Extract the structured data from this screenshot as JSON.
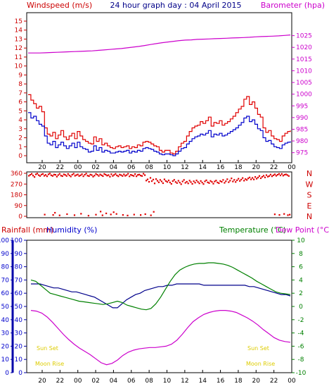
{
  "chart_data": [
    {
      "type": "line",
      "panel": "wind-pressure",
      "title": "24 hour graph day : 04 April 2015",
      "left_axis_label": "Windspeed (m/s)",
      "right_axis_label": "Barometer (hpa)",
      "y_left_ticks": [
        "0",
        "1",
        "2",
        "3",
        "4",
        "5",
        "6",
        "7",
        "8",
        "9",
        "10",
        "11",
        "12",
        "13",
        "14",
        "15"
      ],
      "y_right_ticks": [
        "975",
        "980",
        "985",
        "990",
        "995",
        "1000",
        "1005",
        "1010",
        "1015",
        "1020",
        "1025"
      ],
      "x_ticks": [
        "20",
        "22",
        "00",
        "02",
        "04",
        "06",
        "08",
        "10",
        "12",
        "14",
        "16",
        "18",
        "20",
        "22",
        "00"
      ],
      "ylim_left": [
        0,
        15
      ],
      "ylim_right": [
        972.5,
        1030
      ],
      "grid": false,
      "colors": {
        "gust": "#e00000",
        "average": "#0000cc",
        "barometer": "#cc00cc",
        "axis_left": "#cc0000",
        "axis_right": "#cc00cc"
      },
      "series": [
        {
          "key": "gust",
          "values": [
            6.8,
            6.2,
            5.8,
            5.3,
            5.5,
            4.9,
            3.1,
            2.4,
            2.2,
            2.6,
            1.9,
            2.3,
            2.8,
            2.1,
            1.8,
            2.2,
            2.5,
            1.9,
            2.7,
            2.2,
            1.8,
            1.6,
            1.4,
            1.3,
            2.1,
            1.6,
            1.9,
            1.2,
            1.4,
            1.1,
            0.9,
            0.8,
            1.0,
            1.1,
            0.9,
            1.0,
            1.1,
            0.8,
            1.0,
            0.9,
            1.2,
            1.1,
            1.5,
            1.6,
            1.5,
            1.3,
            1.1,
            1.0,
            0.6,
            0.4,
            0.6,
            0.6,
            0.3,
            0.2,
            0.5,
            1.0,
            1.4,
            1.6,
            2.2,
            2.7,
            3.1,
            3.3,
            3.4,
            3.8,
            3.6,
            3.9,
            4.3,
            3.3,
            3.7,
            3.6,
            3.9,
            3.4,
            3.6,
            3.8,
            4.1,
            4.4,
            4.8,
            5.2,
            5.5,
            6.3,
            6.6,
            5.7,
            6.0,
            5.3,
            4.6,
            4.3,
            3.1,
            2.6,
            2.8,
            2.2,
            1.9,
            1.8,
            1.6,
            2.2,
            2.5,
            2.7,
            2.8
          ]
        },
        {
          "key": "average",
          "values": [
            4.8,
            4.2,
            4.4,
            3.9,
            3.5,
            3.3,
            2.2,
            1.4,
            1.2,
            1.6,
            0.9,
            1.2,
            1.5,
            1.1,
            0.8,
            1.1,
            1.4,
            0.9,
            1.5,
            1.0,
            0.8,
            0.7,
            0.4,
            0.5,
            1.1,
            0.6,
            0.9,
            0.4,
            0.6,
            0.5,
            0.3,
            0.3,
            0.4,
            0.5,
            0.4,
            0.5,
            0.6,
            0.3,
            0.5,
            0.4,
            0.6,
            0.5,
            0.8,
            0.9,
            0.8,
            0.7,
            0.5,
            0.4,
            0.2,
            0.1,
            0.2,
            0.2,
            0.1,
            0.0,
            0.2,
            0.5,
            0.8,
            0.9,
            1.3,
            1.6,
            1.9,
            2.1,
            2.2,
            2.4,
            2.3,
            2.5,
            2.8,
            2.1,
            2.4,
            2.3,
            2.5,
            2.2,
            2.3,
            2.5,
            2.7,
            2.9,
            3.1,
            3.4,
            3.7,
            4.2,
            4.4,
            3.8,
            4.0,
            3.5,
            3.0,
            2.8,
            2.0,
            1.6,
            1.7,
            1.3,
            1.0,
            0.9,
            0.8,
            1.2,
            1.4,
            1.5,
            1.6
          ]
        },
        {
          "key": "barometer",
          "values": [
            1017.6,
            1017.6,
            1017.6,
            1017.7,
            1017.8,
            1017.9,
            1018.0,
            1018.1,
            1018.2,
            1018.3,
            1018.4,
            1018.5,
            1018.7,
            1018.9,
            1019.1,
            1019.3,
            1019.5,
            1019.8,
            1020.1,
            1020.4,
            1020.8,
            1021.2,
            1021.6,
            1022.0,
            1022.3,
            1022.6,
            1022.9,
            1023.1,
            1023.2,
            1023.4,
            1023.5,
            1023.6,
            1023.7,
            1023.8,
            1023.9,
            1024.0,
            1024.1,
            1024.2,
            1024.3,
            1024.5,
            1024.6,
            1024.7,
            1024.8,
            1024.9,
            1025.1,
            1025.3
          ]
        }
      ]
    },
    {
      "type": "scatter",
      "panel": "wind-direction",
      "y_left_ticks": [
        "360",
        "270",
        "180",
        "90",
        "0"
      ],
      "y_right_labels": [
        "N",
        "W",
        "S",
        "E",
        "N"
      ],
      "ylim": [
        0,
        360
      ],
      "colors": {
        "points": "#e00000"
      },
      "series": [
        {
          "key": "direction",
          "x": [
            0.0,
            0.15,
            0.3,
            0.45,
            0.6,
            0.75,
            0.9,
            1.05,
            1.2,
            1.35,
            1.5,
            1.65,
            1.8,
            1.95,
            2.1,
            2.25,
            2.4,
            2.55,
            2.7,
            2.85,
            3.0,
            3.15,
            3.3,
            3.45,
            3.6,
            3.75,
            3.9,
            4.05,
            4.2,
            4.35,
            4.5,
            4.65,
            4.8,
            4.95,
            5.1,
            5.25,
            5.4,
            5.55,
            5.7,
            5.85,
            6.0,
            6.15,
            6.3,
            6.45,
            6.6,
            6.75,
            6.9,
            7.05,
            7.2,
            7.35,
            7.5,
            7.65,
            7.8,
            7.95,
            8.1,
            8.25,
            8.4,
            8.55,
            8.7,
            8.85,
            9.0,
            9.15,
            9.3,
            9.45,
            9.6,
            9.75,
            9.9,
            10.05,
            10.2,
            10.35,
            10.5,
            10.65,
            10.8,
            10.95,
            11.1,
            11.25,
            11.4,
            11.55,
            11.7,
            11.85,
            12.0,
            12.15,
            12.3,
            12.45,
            12.6,
            12.75,
            12.9,
            13.05,
            13.2,
            13.35,
            13.5,
            13.65,
            13.8,
            13.95,
            14.1,
            14.25,
            14.4,
            14.55,
            14.7,
            14.85,
            15.0,
            15.15,
            15.3,
            15.45,
            15.6,
            15.75,
            15.9,
            16.05,
            16.2,
            16.35,
            16.5,
            16.65,
            16.8,
            16.95,
            17.1,
            17.25,
            17.4,
            17.55,
            17.7,
            17.85,
            18.0,
            18.15,
            18.3,
            18.45,
            18.6,
            18.75,
            18.9,
            19.05,
            19.2,
            19.35,
            19.5,
            19.65,
            19.8,
            19.95,
            20.1,
            20.25,
            20.4,
            20.55,
            20.7,
            20.85,
            21.0,
            21.15,
            21.3,
            21.45,
            21.6,
            21.75,
            21.9,
            22.05,
            22.2,
            22.35,
            22.5,
            22.65,
            22.8,
            22.95,
            23.1,
            23.25,
            23.4,
            23.55,
            23.7,
            23.85,
            24.0,
            24.15,
            24.3,
            24.45,
            24.6,
            24.75,
            24.9,
            25.05,
            25.2,
            25.35,
            25.5,
            25.65,
            25.8,
            25.95,
            26.1,
            26.25,
            26.4,
            26.55,
            26.7,
            26.85,
            27.0,
            27.15,
            27.3,
            27.45,
            27.6,
            27.75,
            27.9,
            1.7,
            2.6,
            3.3,
            4.1,
            4.9,
            5.6,
            6.4,
            7.2,
            7.9,
            8.8,
            9.4,
            10.1,
            10.6,
            11.3,
            12.0,
            12.5,
            13.1,
            26.4,
            26.9,
            27.4,
            27.8,
            28.0,
            2.8,
            7.7,
            8.3,
            9.1,
            13.4
          ],
          "y": [
            340,
            348,
            356,
            342,
            330,
            352,
            358,
            345,
            338,
            350,
            355,
            340,
            347,
            336,
            352,
            358,
            344,
            339,
            350,
            348,
            333,
            346,
            356,
            341,
            337,
            352,
            347,
            339,
            355,
            343,
            334,
            349,
            357,
            340,
            346,
            351,
            338,
            344,
            353,
            336,
            349,
            358,
            341,
            337,
            350,
            346,
            333,
            342,
            356,
            348,
            339,
            351,
            344,
            337,
            355,
            349,
            341,
            346,
            332,
            353,
            339,
            347,
            356,
            343,
            336,
            350,
            345,
            338,
            352,
            340,
            346,
            357,
            335,
            348,
            343,
            339,
            354,
            336,
            347,
            350,
            342,
            338,
            357,
            345,
            300,
            310,
            289,
            322,
            295,
            308,
            276,
            312,
            298,
            285,
            305,
            293,
            278,
            310,
            296,
            288,
            301,
            284,
            272,
            295,
            306,
            288,
            279,
            298,
            283,
            270,
            292,
            305,
            281,
            290,
            276,
            299,
            287,
            272,
            294,
            282,
            301,
            288,
            277,
            296,
            283,
            271,
            293,
            302,
            285,
            279,
            297,
            288,
            274,
            292,
            300,
            284,
            278,
            296,
            289,
            305,
            281,
            294,
            311,
            286,
            299,
            318,
            292,
            306,
            288,
            302,
            315,
            297,
            308,
            321,
            299,
            312,
            305,
            318,
            326,
            310,
            322,
            309,
            330,
            316,
            325,
            338,
            319,
            331,
            340,
            326,
            345,
            332,
            338,
            350,
            336,
            344,
            352,
            340,
            348,
            356,
            343,
            355,
            341,
            349,
            352,
            346,
            338,
            15,
            12,
            8,
            18,
            10,
            22,
            6,
            14,
            9,
            16,
            20,
            12,
            7,
            15,
            11,
            18,
            9,
            17,
            12,
            20,
            10,
            14,
            30,
            40,
            25,
            35,
            38
          ]
        }
      ]
    },
    {
      "type": "line",
      "panel": "rain-humidity-temperature",
      "left_axis_labels": [
        "Rainfall (mm)",
        "Humidity (%)"
      ],
      "right_axis_labels": [
        "Temperature (°C)",
        "Dew Point (°C)"
      ],
      "y_rain_ticks": [
        "0",
        "10",
        "20",
        "30",
        "40",
        "50",
        "60",
        "70",
        "80",
        "90",
        "100"
      ],
      "y_humidity_ticks": [
        "0",
        "10",
        "20",
        "30",
        "40",
        "50",
        "60",
        "70",
        "80",
        "90",
        "100"
      ],
      "y_temp_ticks": [
        "10",
        "8",
        "6",
        "4",
        "2",
        "0",
        "-2",
        "-4",
        "-6",
        "-8",
        "-10"
      ],
      "x_ticks": [
        "20",
        "22",
        "00",
        "02",
        "04",
        "06",
        "08",
        "10",
        "12",
        "14",
        "16",
        "18",
        "20",
        "22",
        "00"
      ],
      "ylim_humidity": [
        0,
        100
      ],
      "ylim_temperature": [
        -10,
        10
      ],
      "colors": {
        "humidity": "#00008b",
        "temperature": "#008000",
        "dewpoint": "#cc00cc",
        "rain_axis": "#cc0000",
        "humidity_axis": "#0000cc",
        "temperature_axis": "#008000",
        "dewpoint_axis": "#cc00cc",
        "sun_moon": "#ddcc00"
      },
      "annotations": [
        {
          "text": "Sun Set",
          "side": "left"
        },
        {
          "text": "Moon Rise",
          "side": "left"
        },
        {
          "text": "Sun Set",
          "side": "right"
        },
        {
          "text": "Moon Rise",
          "side": "right"
        }
      ],
      "series": [
        {
          "key": "humidity",
          "values": [
            67,
            67,
            67,
            66,
            65,
            64,
            64,
            63,
            62,
            61,
            61,
            60,
            59,
            58,
            57,
            55,
            53,
            51,
            49,
            49,
            52,
            55,
            57,
            59,
            60,
            62,
            63,
            64,
            65,
            65,
            66,
            66,
            67,
            67,
            67,
            67,
            67,
            67,
            66,
            66,
            66,
            66,
            66,
            66,
            66,
            66,
            66,
            66,
            65,
            65,
            64,
            63,
            62,
            61,
            60,
            59,
            59,
            58
          ]
        },
        {
          "key": "temperature",
          "values": [
            4.0,
            3.8,
            3.2,
            2.6,
            2.0,
            1.8,
            1.6,
            1.4,
            1.2,
            1.0,
            0.8,
            0.7,
            0.6,
            0.5,
            0.4,
            0.3,
            0.4,
            0.6,
            0.8,
            0.6,
            0.2,
            0.0,
            -0.2,
            -0.4,
            -0.5,
            -0.3,
            0.4,
            1.4,
            2.6,
            3.8,
            4.8,
            5.5,
            5.9,
            6.2,
            6.4,
            6.5,
            6.5,
            6.6,
            6.6,
            6.5,
            6.4,
            6.2,
            5.9,
            5.5,
            5.1,
            4.7,
            4.3,
            3.8,
            3.4,
            3.0,
            2.6,
            2.2,
            2.0,
            1.9,
            1.8
          ]
        },
        {
          "key": "dewpoint",
          "values": [
            -0.6,
            -0.7,
            -1.0,
            -1.6,
            -2.4,
            -3.3,
            -4.2,
            -5.0,
            -5.7,
            -6.3,
            -6.8,
            -7.3,
            -7.9,
            -8.5,
            -8.8,
            -8.6,
            -8.1,
            -7.4,
            -6.9,
            -6.6,
            -6.4,
            -6.3,
            -6.2,
            -6.2,
            -6.1,
            -6.0,
            -5.7,
            -5.1,
            -4.2,
            -3.2,
            -2.3,
            -1.7,
            -1.2,
            -0.9,
            -0.7,
            -0.6,
            -0.6,
            -0.7,
            -0.9,
            -1.3,
            -1.7,
            -2.2,
            -2.8,
            -3.5,
            -4.1,
            -4.7,
            -5.1,
            -5.3,
            -5.4
          ]
        }
      ]
    }
  ]
}
